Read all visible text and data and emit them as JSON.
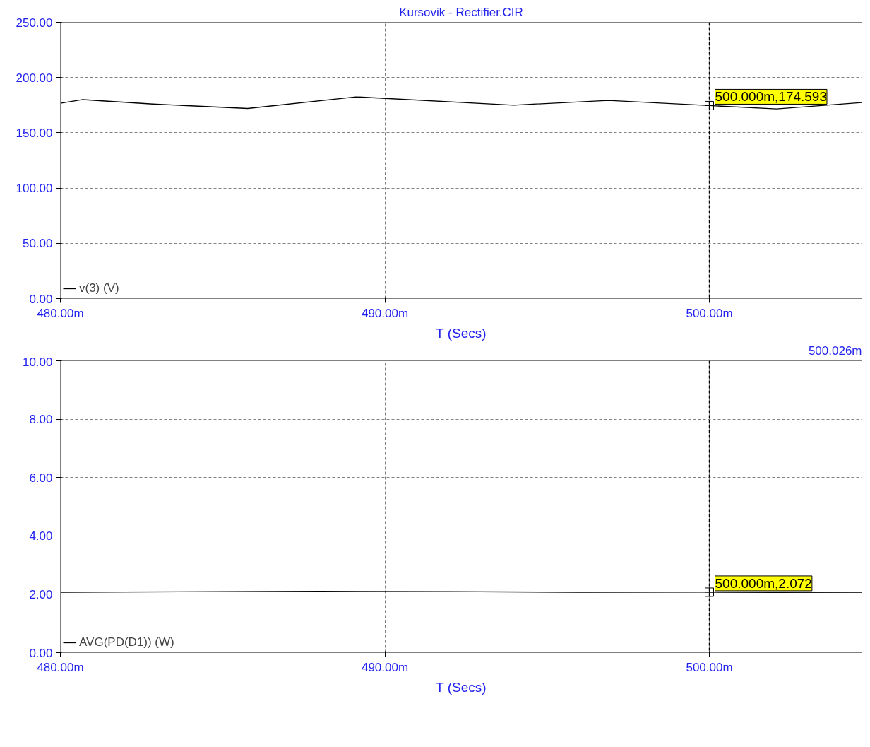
{
  "chart_data": [
    {
      "type": "line",
      "title": "Kursovik - Rectifier.CIR",
      "xlabel": "T (Secs)",
      "xlim": [
        480,
        504.7
      ],
      "ylim": [
        0,
        250
      ],
      "xticks": [
        {
          "value": 480,
          "label": "480.00m"
        },
        {
          "value": 490,
          "label": "490.00m"
        },
        {
          "value": 500,
          "label": "500.00m"
        }
      ],
      "yticks": [
        {
          "value": 0,
          "label": "0.00"
        },
        {
          "value": 50,
          "label": "50.00"
        },
        {
          "value": 100,
          "label": "100.00"
        },
        {
          "value": 150,
          "label": "150.00"
        },
        {
          "value": 200,
          "label": "200.00"
        },
        {
          "value": 250,
          "label": "250.00"
        }
      ],
      "grid": true,
      "legend": "bottom",
      "marker": "none",
      "line_style": "solid",
      "ref_lines": [
        {
          "axis": "x",
          "value": 500,
          "color": "#000000",
          "line_style": "dashed"
        }
      ],
      "annotations": [
        {
          "text": "500.000m,174.593",
          "x": 500,
          "y": 174.593
        },
        "500.026m"
      ],
      "series": [
        {
          "name": "v(3) (V)",
          "color": "#000000",
          "x": [
            480,
            480.69,
            482.85,
            485.77,
            489.11,
            493.97,
            496.89,
            500,
            502.07,
            504.7
          ],
          "values": [
            176.7,
            180,
            176,
            172,
            182.5,
            175,
            179.3,
            174.593,
            171.6,
            177.4
          ]
        }
      ]
    },
    {
      "type": "line",
      "xlabel": "T (Secs)",
      "xlim": [
        480,
        504.7
      ],
      "ylim": [
        0,
        10
      ],
      "xticks": [
        {
          "value": 480,
          "label": "480.00m"
        },
        {
          "value": 490,
          "label": "490.00m"
        },
        {
          "value": 500,
          "label": "500.00m"
        }
      ],
      "yticks": [
        {
          "value": 0,
          "label": "0.00"
        },
        {
          "value": 2,
          "label": "2.00"
        },
        {
          "value": 4,
          "label": "4.00"
        },
        {
          "value": 6,
          "label": "6.00"
        },
        {
          "value": 8,
          "label": "8.00"
        },
        {
          "value": 10,
          "label": "10.00"
        }
      ],
      "grid": true,
      "legend": "bottom",
      "marker": "none",
      "line_style": "solid",
      "ref_lines": [
        {
          "axis": "x",
          "value": 500,
          "color": "#000000",
          "line_style": "dashed"
        }
      ],
      "annotations": [
        {
          "text": "500.000m,2.072",
          "x": 500,
          "y": 2.072
        }
      ],
      "series": [
        {
          "name": "AVG(PD(D1)) (W)",
          "color": "#000000",
          "x": [
            480,
            488,
            492,
            496,
            500,
            502,
            504.7
          ],
          "values": [
            2.07,
            2.1,
            2.09,
            2.07,
            2.072,
            2.06,
            2.07
          ]
        }
      ]
    }
  ]
}
